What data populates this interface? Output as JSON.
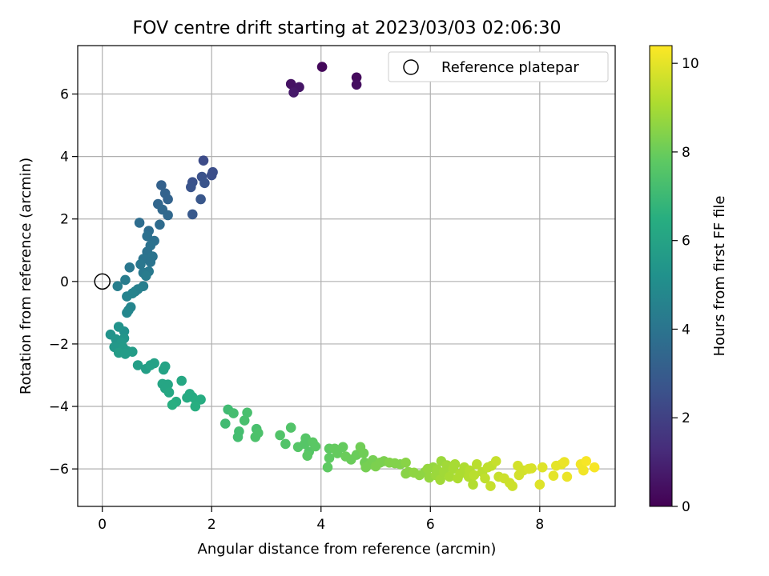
{
  "chart_data": {
    "type": "scatter",
    "title": "FOV centre drift starting at 2023/03/03 02:06:30",
    "xlabel": "Angular distance from reference (arcmin)",
    "ylabel": "Rotation from reference (arcmin)",
    "xlim": [
      -0.45,
      9.38
    ],
    "ylim": [
      -7.2,
      7.55
    ],
    "xticks": [
      0,
      2,
      4,
      6,
      8
    ],
    "yticks": [
      -6,
      -4,
      -2,
      0,
      2,
      4,
      6
    ],
    "xtick_labels": [
      "0",
      "2",
      "4",
      "6",
      "8"
    ],
    "ytick_labels": [
      "−6",
      "−4",
      "−2",
      "0",
      "2",
      "4",
      "6"
    ],
    "grid": true,
    "legend": {
      "label": "Reference platepar",
      "position": "top-right"
    },
    "reference_point": {
      "x": 0,
      "y": 0
    },
    "colorbar": {
      "label": "Hours from first FF file",
      "range": [
        0,
        10.4
      ],
      "ticks": [
        0,
        2,
        4,
        6,
        8,
        10
      ],
      "tick_labels": [
        "0",
        "2",
        "4",
        "6",
        "8",
        "10"
      ],
      "colormap": "viridis"
    },
    "points": [
      [
        4.02,
        6.87,
        0.2
      ],
      [
        4.65,
        6.53,
        0.3
      ],
      [
        4.65,
        6.3,
        0.4
      ],
      [
        3.45,
        6.32,
        0.5
      ],
      [
        3.6,
        6.22,
        0.6
      ],
      [
        3.5,
        6.05,
        0.7
      ],
      [
        1.85,
        3.87,
        2.4
      ],
      [
        2.02,
        3.5,
        2.5
      ],
      [
        2.0,
        3.4,
        2.5
      ],
      [
        1.82,
        3.35,
        2.6
      ],
      [
        1.65,
        3.18,
        2.6
      ],
      [
        1.87,
        3.15,
        2.7
      ],
      [
        1.62,
        3.02,
        2.7
      ],
      [
        1.8,
        2.63,
        2.8
      ],
      [
        1.65,
        2.15,
        2.9
      ],
      [
        1.08,
        3.08,
        3.2
      ],
      [
        1.15,
        2.82,
        3.3
      ],
      [
        1.2,
        2.63,
        3.3
      ],
      [
        1.02,
        2.48,
        3.4
      ],
      [
        1.1,
        2.3,
        3.5
      ],
      [
        1.2,
        2.12,
        3.5
      ],
      [
        1.05,
        1.82,
        3.6
      ],
      [
        0.68,
        1.88,
        3.7
      ],
      [
        0.85,
        1.62,
        3.7
      ],
      [
        0.82,
        1.45,
        3.8
      ],
      [
        0.95,
        1.3,
        3.8
      ],
      [
        0.88,
        1.15,
        3.9
      ],
      [
        0.82,
        0.95,
        3.9
      ],
      [
        0.92,
        0.8,
        4.0
      ],
      [
        0.75,
        0.72,
        4.0
      ],
      [
        0.88,
        0.62,
        4.0
      ],
      [
        0.7,
        0.55,
        4.1
      ],
      [
        0.5,
        0.45,
        4.1
      ],
      [
        0.85,
        0.32,
        4.2
      ],
      [
        0.75,
        0.28,
        4.2
      ],
      [
        0.8,
        0.18,
        4.3
      ],
      [
        0.42,
        0.05,
        4.3
      ],
      [
        0.28,
        -0.15,
        4.4
      ],
      [
        0.75,
        -0.15,
        4.4
      ],
      [
        0.65,
        -0.25,
        4.5
      ],
      [
        0.6,
        -0.32,
        4.5
      ],
      [
        0.55,
        -0.38,
        4.6
      ],
      [
        0.45,
        -0.48,
        4.6
      ],
      [
        0.52,
        -0.82,
        4.7
      ],
      [
        0.48,
        -0.92,
        4.7
      ],
      [
        0.45,
        -1.0,
        4.8
      ],
      [
        0.4,
        -1.6,
        5.2
      ],
      [
        0.15,
        -1.7,
        5.3
      ],
      [
        0.3,
        -1.45,
        5.3
      ],
      [
        0.25,
        -1.85,
        5.4
      ],
      [
        0.4,
        -1.82,
        5.4
      ],
      [
        0.35,
        -1.95,
        5.5
      ],
      [
        0.22,
        -2.1,
        5.5
      ],
      [
        0.38,
        -2.12,
        5.6
      ],
      [
        0.45,
        -2.22,
        5.6
      ],
      [
        0.3,
        -2.28,
        5.7
      ],
      [
        0.42,
        -2.32,
        5.7
      ],
      [
        0.55,
        -2.25,
        5.7
      ],
      [
        0.65,
        -2.68,
        5.8
      ],
      [
        0.8,
        -2.8,
        5.8
      ],
      [
        0.88,
        -2.68,
        5.9
      ],
      [
        0.95,
        -2.62,
        5.9
      ],
      [
        1.15,
        -2.72,
        6.0
      ],
      [
        1.12,
        -2.82,
        6.0
      ],
      [
        1.1,
        -3.28,
        6.1
      ],
      [
        1.2,
        -3.3,
        6.1
      ],
      [
        1.15,
        -3.42,
        6.1
      ],
      [
        1.22,
        -3.55,
        6.2
      ],
      [
        1.45,
        -3.18,
        6.2
      ],
      [
        1.6,
        -3.6,
        6.3
      ],
      [
        1.65,
        -3.7,
        6.3
      ],
      [
        1.55,
        -3.72,
        6.3
      ],
      [
        1.72,
        -3.82,
        6.4
      ],
      [
        1.8,
        -3.78,
        6.4
      ],
      [
        1.35,
        -3.85,
        6.4
      ],
      [
        1.28,
        -3.95,
        6.5
      ],
      [
        1.7,
        -4.0,
        6.5
      ],
      [
        2.25,
        -4.55,
        7.1
      ],
      [
        2.3,
        -4.1,
        7.1
      ],
      [
        2.4,
        -4.22,
        7.2
      ],
      [
        2.5,
        -4.8,
        7.2
      ],
      [
        2.48,
        -4.98,
        7.2
      ],
      [
        2.6,
        -4.45,
        7.3
      ],
      [
        2.65,
        -4.2,
        7.3
      ],
      [
        2.82,
        -4.72,
        7.3
      ],
      [
        2.8,
        -4.98,
        7.4
      ],
      [
        2.85,
        -4.85,
        7.4
      ],
      [
        3.25,
        -4.92,
        7.5
      ],
      [
        3.35,
        -5.2,
        7.5
      ],
      [
        3.45,
        -4.68,
        7.5
      ],
      [
        3.58,
        -5.3,
        7.6
      ],
      [
        3.7,
        -5.2,
        7.6
      ],
      [
        3.72,
        -5.02,
        7.6
      ],
      [
        3.78,
        -5.45,
        7.6
      ],
      [
        3.75,
        -5.58,
        7.7
      ],
      [
        3.85,
        -5.15,
        7.7
      ],
      [
        3.9,
        -5.28,
        7.7
      ],
      [
        4.15,
        -5.35,
        7.8
      ],
      [
        4.12,
        -5.95,
        7.8
      ],
      [
        4.15,
        -5.65,
        7.8
      ],
      [
        4.25,
        -5.35,
        7.9
      ],
      [
        4.3,
        -5.5,
        7.9
      ],
      [
        4.4,
        -5.3,
        7.9
      ],
      [
        4.45,
        -5.6,
        8.0
      ],
      [
        4.55,
        -5.7,
        8.0
      ],
      [
        4.65,
        -5.55,
        8.0
      ],
      [
        4.72,
        -5.3,
        8.1
      ],
      [
        4.78,
        -5.5,
        8.1
      ],
      [
        4.8,
        -5.8,
        8.1
      ],
      [
        4.9,
        -5.85,
        8.2
      ],
      [
        4.82,
        -5.95,
        8.2
      ],
      [
        4.95,
        -5.72,
        8.2
      ],
      [
        5.0,
        -5.92,
        8.3
      ],
      [
        5.08,
        -5.8,
        8.3
      ],
      [
        5.15,
        -5.75,
        8.3
      ],
      [
        5.25,
        -5.8,
        8.4
      ],
      [
        5.35,
        -5.82,
        8.4
      ],
      [
        5.45,
        -5.85,
        8.4
      ],
      [
        5.55,
        -5.8,
        8.5
      ],
      [
        5.55,
        -6.15,
        8.5
      ],
      [
        5.6,
        -6.1,
        8.5
      ],
      [
        5.7,
        -6.12,
        8.6
      ],
      [
        5.8,
        -6.2,
        8.6
      ],
      [
        5.9,
        -6.1,
        8.6
      ],
      [
        5.95,
        -6.0,
        8.7
      ],
      [
        5.98,
        -6.28,
        8.7
      ],
      [
        6.05,
        -5.95,
        8.7
      ],
      [
        6.1,
        -6.2,
        8.8
      ],
      [
        6.12,
        -6.02,
        8.8
      ],
      [
        6.2,
        -5.75,
        8.8
      ],
      [
        6.18,
        -6.35,
        8.9
      ],
      [
        6.25,
        -6.1,
        8.9
      ],
      [
        6.3,
        -5.88,
        8.9
      ],
      [
        6.35,
        -6.25,
        9.0
      ],
      [
        6.42,
        -6.0,
        9.0
      ],
      [
        6.45,
        -5.85,
        9.0
      ],
      [
        6.5,
        -6.3,
        9.1
      ],
      [
        6.55,
        -6.15,
        9.1
      ],
      [
        6.62,
        -5.95,
        9.1
      ],
      [
        6.7,
        -6.25,
        9.2
      ],
      [
        6.72,
        -6.05,
        9.2
      ],
      [
        6.78,
        -6.5,
        9.2
      ],
      [
        6.8,
        -6.2,
        9.3
      ],
      [
        6.85,
        -5.85,
        9.3
      ],
      [
        6.95,
        -6.1,
        9.3
      ],
      [
        7.0,
        -6.3,
        9.4
      ],
      [
        7.05,
        -5.95,
        9.4
      ],
      [
        7.12,
        -5.9,
        9.4
      ],
      [
        7.2,
        -5.75,
        9.5
      ],
      [
        7.1,
        -6.55,
        9.5
      ],
      [
        7.25,
        -6.25,
        9.5
      ],
      [
        7.35,
        -6.3,
        9.6
      ],
      [
        7.45,
        -6.45,
        9.6
      ],
      [
        7.5,
        -6.55,
        9.6
      ],
      [
        7.6,
        -5.9,
        9.7
      ],
      [
        7.62,
        -6.2,
        9.7
      ],
      [
        7.7,
        -6.05,
        9.7
      ],
      [
        7.8,
        -6.0,
        9.8
      ],
      [
        7.85,
        -5.98,
        9.8
      ],
      [
        8.0,
        -6.5,
        9.9
      ],
      [
        8.05,
        -5.95,
        9.9
      ],
      [
        8.25,
        -6.22,
        10.0
      ],
      [
        8.3,
        -5.9,
        10.0
      ],
      [
        8.4,
        -5.85,
        10.0
      ],
      [
        8.45,
        -5.78,
        10.1
      ],
      [
        8.5,
        -6.25,
        10.1
      ],
      [
        8.75,
        -5.85,
        10.2
      ],
      [
        8.8,
        -6.05,
        10.2
      ],
      [
        8.85,
        -5.75,
        10.3
      ],
      [
        9.0,
        -5.95,
        10.3
      ]
    ]
  }
}
